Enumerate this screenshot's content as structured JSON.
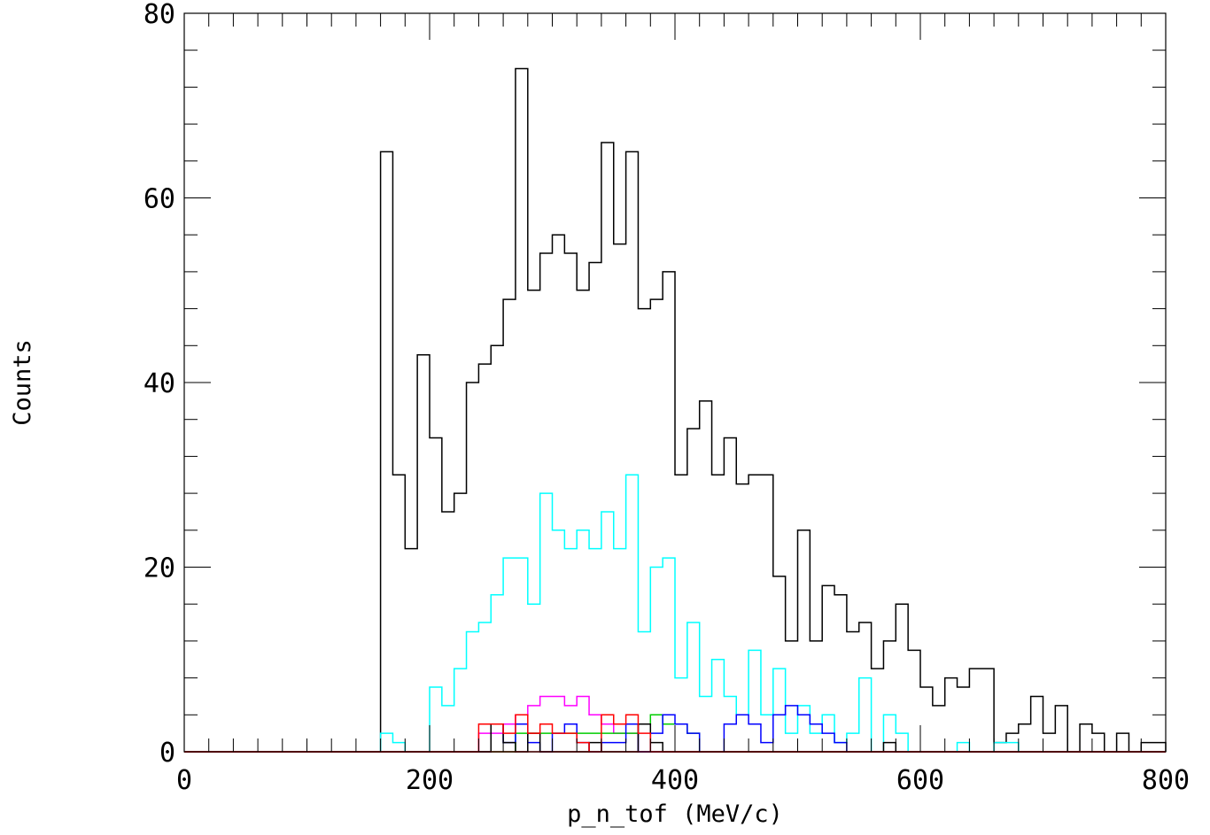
{
  "chart_data": {
    "type": "step-histogram",
    "xlabel": "p_n_tof (MeV/c)",
    "ylabel": "Counts",
    "xlim": [
      0,
      800
    ],
    "ylim": [
      0,
      80
    ],
    "bin_width": 10,
    "x_ticks": [
      0,
      200,
      400,
      600,
      800
    ],
    "x_tick_labels": [
      "0",
      "200",
      "400",
      "600",
      "800"
    ],
    "y_ticks": [
      0,
      20,
      40,
      60,
      80
    ],
    "y_tick_labels": [
      "0",
      "20",
      "40",
      "60",
      "80"
    ],
    "x_minor_step": 20,
    "y_minor_step": 4,
    "grid": false,
    "series": [
      {
        "color": "#000000",
        "values": [
          0,
          0,
          0,
          0,
          0,
          0,
          0,
          0,
          0,
          0,
          0,
          0,
          0,
          0,
          0,
          0,
          65,
          30,
          22,
          43,
          34,
          26,
          28,
          40,
          42,
          44,
          49,
          74,
          50,
          54,
          56,
          54,
          50,
          53,
          66,
          55,
          65,
          48,
          49,
          52,
          30,
          35,
          38,
          30,
          34,
          29,
          30,
          30,
          19,
          12,
          24,
          12,
          18,
          17,
          13,
          14,
          9,
          12,
          16,
          11,
          7,
          5,
          8,
          7,
          9,
          9,
          1,
          2,
          3,
          6,
          2,
          5,
          0,
          3,
          2,
          0,
          2,
          0,
          1,
          1
        ]
      },
      {
        "color": "#00ffff",
        "values": [
          0,
          0,
          0,
          0,
          0,
          0,
          0,
          0,
          0,
          0,
          0,
          0,
          0,
          0,
          0,
          0,
          2,
          1,
          0,
          0,
          7,
          5,
          9,
          13,
          14,
          17,
          21,
          21,
          16,
          28,
          24,
          22,
          24,
          22,
          26,
          22,
          30,
          13,
          20,
          21,
          8,
          14,
          6,
          10,
          6,
          4,
          11,
          4,
          9,
          2,
          5,
          2,
          4,
          1,
          2,
          8,
          0,
          4,
          2,
          0,
          0,
          0,
          0,
          1,
          0,
          0,
          1,
          1,
          0,
          0,
          0,
          0,
          0,
          0,
          0,
          0,
          0,
          0,
          0,
          0
        ]
      },
      {
        "color": "#ff00ff",
        "values": [
          0,
          0,
          0,
          0,
          0,
          0,
          0,
          0,
          0,
          0,
          0,
          0,
          0,
          0,
          0,
          0,
          0,
          0,
          0,
          0,
          0,
          0,
          0,
          0,
          2,
          2,
          3,
          4,
          5,
          6,
          6,
          5,
          6,
          4,
          3,
          2,
          2,
          0,
          0,
          0,
          0,
          0,
          0,
          0,
          0,
          0,
          0,
          0,
          0,
          0,
          0,
          0,
          0,
          0,
          0,
          0,
          0,
          0,
          0,
          0,
          0,
          0,
          0,
          0,
          0,
          0,
          0,
          0,
          0,
          0,
          0,
          0,
          0,
          0,
          0,
          0,
          0,
          0,
          0,
          0
        ]
      },
      {
        "color": "#00cc00",
        "values": [
          0,
          0,
          0,
          0,
          0,
          0,
          0,
          0,
          0,
          0,
          0,
          0,
          0,
          0,
          0,
          0,
          0,
          0,
          0,
          0,
          0,
          0,
          0,
          0,
          0,
          0,
          0,
          2,
          2,
          2,
          2,
          2,
          2,
          2,
          2,
          2,
          2,
          3,
          4,
          3,
          3,
          2,
          0,
          0,
          0,
          0,
          0,
          0,
          0,
          0,
          0,
          0,
          0,
          0,
          0,
          0,
          0,
          0,
          0,
          0,
          0,
          0,
          0,
          0,
          0,
          0,
          0,
          0,
          0,
          0,
          0,
          0,
          0,
          0,
          0,
          0,
          0,
          0,
          0,
          0
        ]
      },
      {
        "color": "#0000ff",
        "values": [
          0,
          0,
          0,
          0,
          0,
          0,
          0,
          0,
          0,
          0,
          0,
          0,
          0,
          0,
          0,
          0,
          0,
          0,
          0,
          0,
          0,
          0,
          0,
          0,
          0,
          3,
          1,
          3,
          1,
          0,
          2,
          3,
          1,
          0,
          1,
          1,
          3,
          0,
          2,
          4,
          3,
          2,
          0,
          0,
          3,
          4,
          3,
          1,
          4,
          5,
          4,
          3,
          2,
          1,
          0,
          0,
          0,
          0,
          0,
          0,
          0,
          0,
          0,
          0,
          0,
          0,
          0,
          0,
          0,
          0,
          0,
          0,
          0,
          0,
          0,
          0,
          0,
          0,
          0,
          0
        ]
      },
      {
        "color": "#000000",
        "values": [
          0,
          0,
          0,
          0,
          0,
          0,
          0,
          0,
          0,
          0,
          0,
          0,
          0,
          0,
          0,
          0,
          0,
          0,
          0,
          0,
          0,
          0,
          0,
          0,
          0,
          3,
          1,
          0,
          2,
          0,
          0,
          0,
          0,
          1,
          0,
          0,
          0,
          3,
          1,
          0,
          0,
          0,
          0,
          0,
          0,
          0,
          0,
          0,
          0,
          0,
          0,
          0,
          0,
          0,
          0,
          0,
          0,
          1,
          0,
          0,
          0,
          0,
          0,
          0,
          0,
          0,
          0,
          0,
          0,
          0,
          0,
          0,
          0,
          0,
          0,
          0,
          0,
          0,
          0,
          0
        ]
      },
      {
        "color": "#ff0000",
        "values": [
          0,
          0,
          0,
          0,
          0,
          0,
          0,
          0,
          0,
          0,
          0,
          0,
          0,
          0,
          0,
          0,
          0,
          0,
          0,
          0,
          0,
          0,
          0,
          0,
          3,
          3,
          2,
          4,
          2,
          3,
          2,
          2,
          1,
          0,
          4,
          3,
          4,
          2,
          0,
          0,
          0,
          0,
          0,
          0,
          0,
          0,
          0,
          0,
          0,
          0,
          0,
          0,
          0,
          0,
          0,
          0,
          0,
          0,
          0,
          0,
          0,
          0,
          0,
          0,
          0,
          0,
          0,
          0,
          0,
          0,
          0,
          0,
          0,
          0,
          0,
          0,
          0,
          0,
          0,
          0
        ]
      }
    ]
  }
}
